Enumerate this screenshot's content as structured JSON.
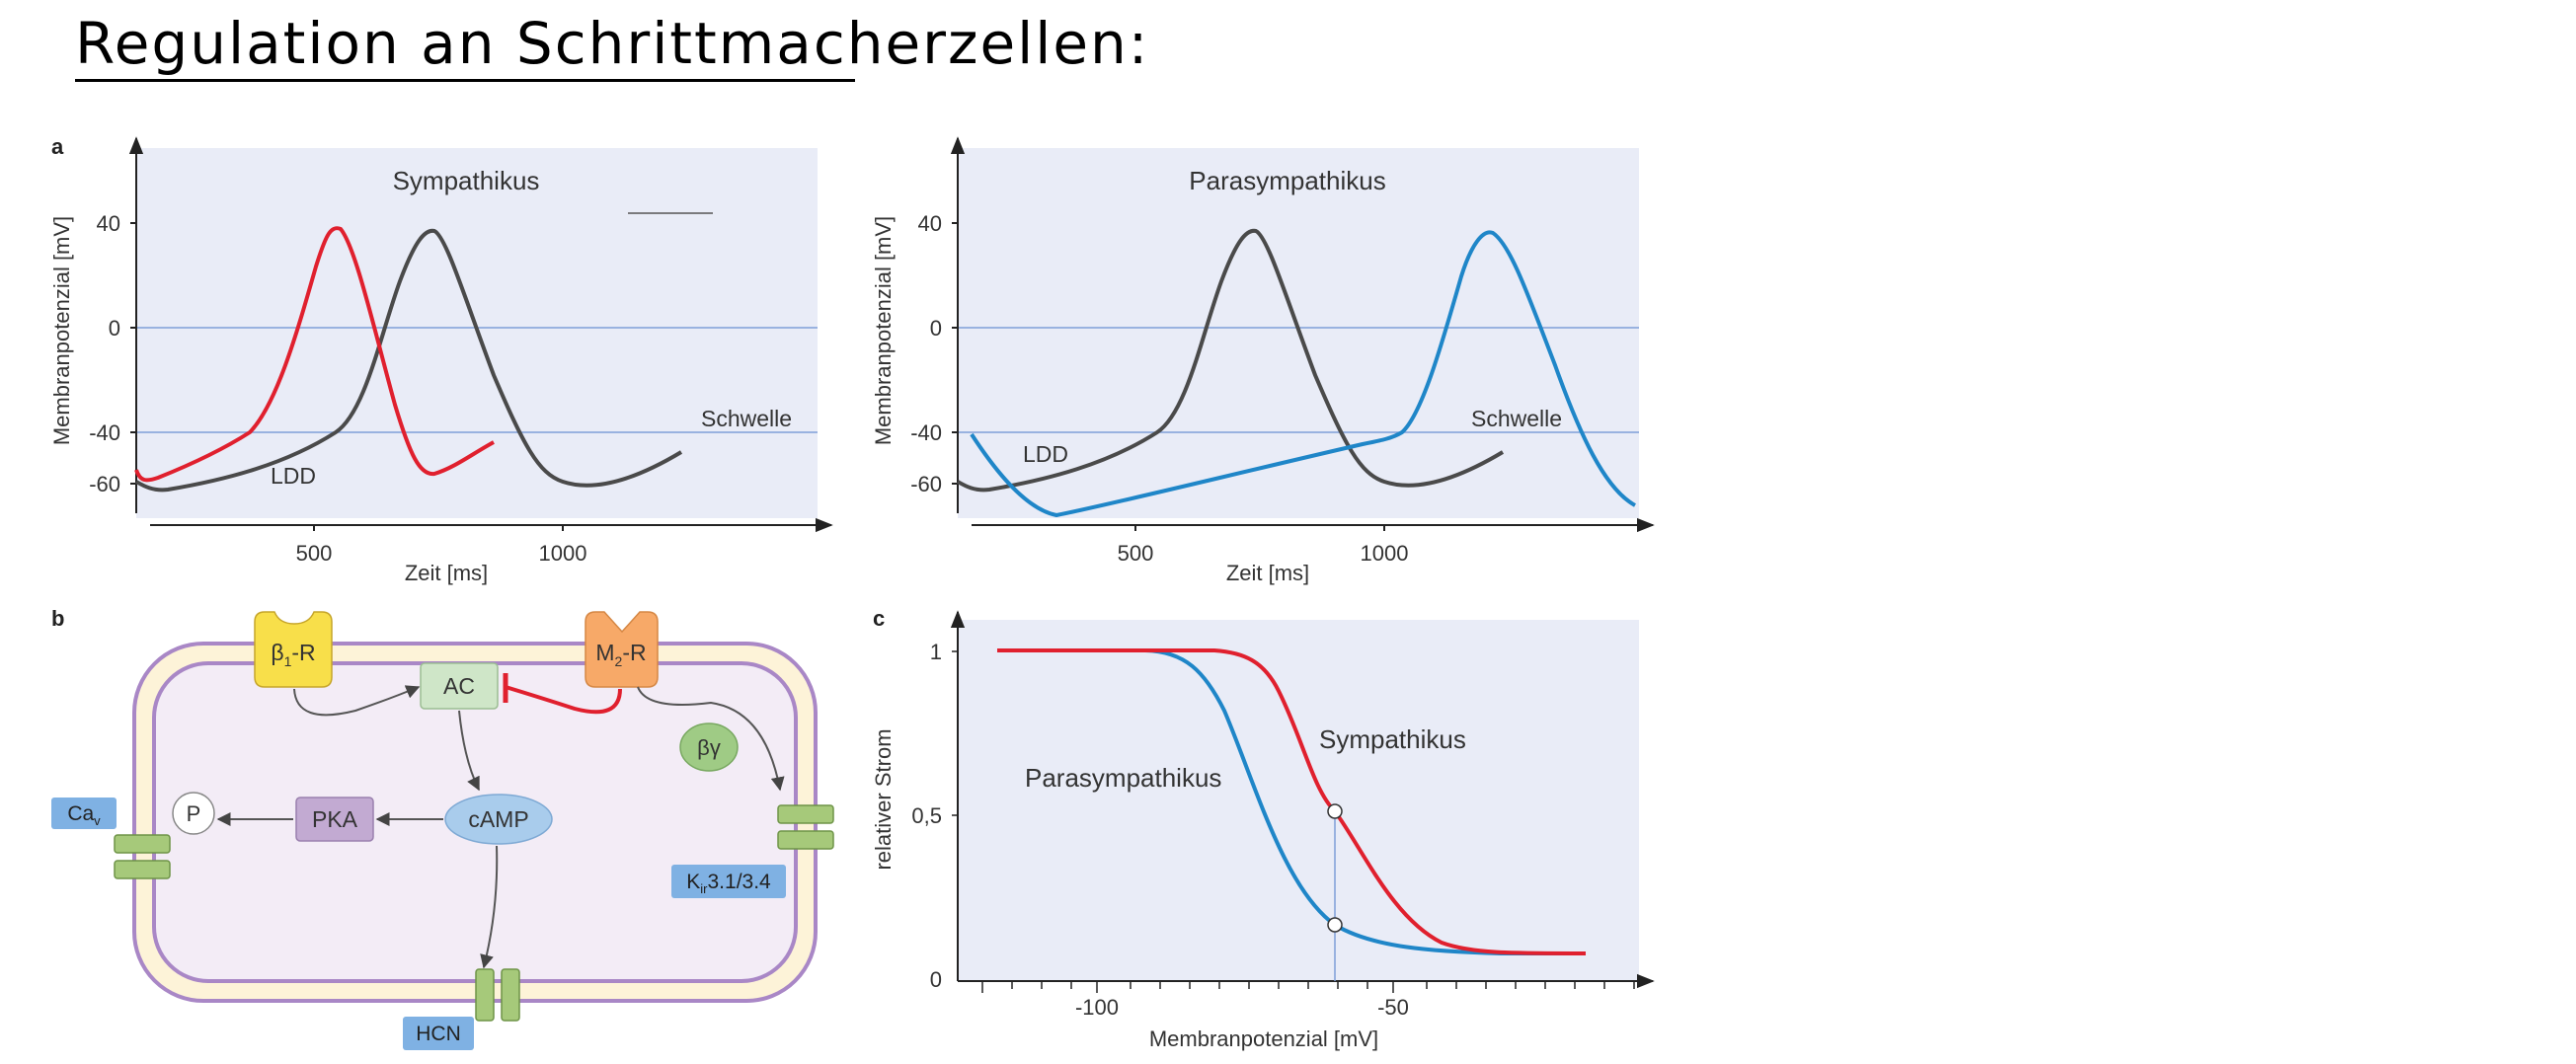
{
  "title": "Regulation an Schrittmacherzellen:",
  "panel_a": {
    "label": "a",
    "left": {
      "title": "Sympathikus",
      "ylabel": "Membranpotenzial [mV]",
      "xlabel": "Zeit [ms]",
      "yticks": [
        "40",
        "0",
        "-40",
        "-60"
      ],
      "xticks": [
        "500",
        "1000"
      ],
      "threshold_label": "Schwelle",
      "ldd_label": "LDD"
    },
    "right": {
      "title": "Parasympathikus",
      "ylabel": "Membranpotenzial [mV]",
      "xlabel": "Zeit [ms]",
      "yticks": [
        "40",
        "0",
        "-40",
        "-60"
      ],
      "xticks": [
        "500",
        "1000"
      ],
      "threshold_label": "Schwelle",
      "ldd_label": "LDD"
    }
  },
  "panel_b": {
    "label": "b",
    "receptor_beta": "β",
    "receptor_beta_sub": "1",
    "receptor_beta_suffix": "-R",
    "receptor_m": "M",
    "receptor_m_sub": "2",
    "receptor_m_suffix": "-R",
    "ac": "AC",
    "camp": "cAMP",
    "pka": "PKA",
    "p": "P",
    "beta_gamma": "βγ",
    "ca_channel": "Ca",
    "ca_sub": "v",
    "kir_prefix": "K",
    "kir_sub": "ir",
    "kir_suffix": "3.1/3.4",
    "hcn": "HCN"
  },
  "panel_c": {
    "label": "c",
    "ylabel": "relativer Strom",
    "xlabel": "Membranpotenzial [mV]",
    "yticks": [
      "1",
      "0,5",
      "0"
    ],
    "xticks": [
      "-100",
      "-50"
    ],
    "curve_sympathikus": "Sympathikus",
    "curve_parasympathikus": "Parasympathikus"
  },
  "colors": {
    "plot_bg": "#e9ecf7",
    "control": "#4a4a4a",
    "sympathetic": "#e0202e",
    "parasympathetic": "#1f86c8",
    "gridline": "#7f9fd8",
    "membrane_outer": "#fdf3d8",
    "membrane_line": "#a987c6",
    "cell_inner": "#f3ecf6"
  },
  "chart_data": [
    {
      "type": "line",
      "title": "Sympathikus",
      "xlabel": "Zeit [ms]",
      "ylabel": "Membranpotenzial [mV]",
      "ylim": [
        -70,
        50
      ],
      "xlim": [
        150,
        1500
      ],
      "threshold": -40,
      "series": [
        {
          "x": [
            150,
            400,
            520,
            600,
            720,
            780,
            900,
            1000,
            1200
          ],
          "y": [
            -60,
            -50,
            -40,
            0,
            37,
            20,
            -40,
            -60,
            -48
          ]
        },
        {
          "x": [
            150,
            300,
            380,
            470,
            550,
            600,
            680,
            800
          ],
          "y": [
            -58,
            -50,
            -40,
            0,
            38,
            10,
            -56,
            -45
          ]
        }
      ]
    },
    {
      "type": "line",
      "title": "Parasympathikus",
      "xlabel": "Zeit [ms]",
      "ylabel": "Membranpotenzial [mV]",
      "ylim": [
        -70,
        50
      ],
      "xlim": [
        150,
        1500
      ],
      "threshold": -40,
      "series": [
        {
          "x": [
            150,
            400,
            520,
            600,
            720,
            780,
            900,
            1000,
            1200
          ],
          "y": [
            -60,
            -50,
            -40,
            0,
            37,
            20,
            -40,
            -60,
            -48
          ]
        },
        {
          "x": [
            150,
            350,
            900,
            1010,
            1100,
            1220,
            1300,
            1480
          ],
          "y": [
            -40,
            -72,
            -45,
            -40,
            0,
            36,
            10,
            -65
          ]
        }
      ]
    },
    {
      "type": "line",
      "xlabel": "Membranpotenzial [mV]",
      "ylabel": "relativer Strom",
      "ylim": [
        0,
        1
      ],
      "xlim": [
        -120,
        -30
      ],
      "series": [
        {
          "name": "Sympathikus",
          "x": [
            -120,
            -80,
            -73,
            -65,
            -60,
            -55,
            -45,
            -35,
            -25
          ],
          "y": [
            1,
            1,
            0.98,
            0.72,
            0.5,
            0.33,
            0.12,
            0.08,
            0.08
          ]
        },
        {
          "name": "Parasympathikus",
          "x": [
            -120,
            -90,
            -85,
            -78,
            -72,
            -66,
            -60,
            -50,
            -40,
            -25
          ],
          "y": [
            1,
            1,
            0.97,
            0.78,
            0.52,
            0.3,
            0.16,
            0.1,
            0.08,
            0.08
          ]
        }
      ]
    }
  ]
}
